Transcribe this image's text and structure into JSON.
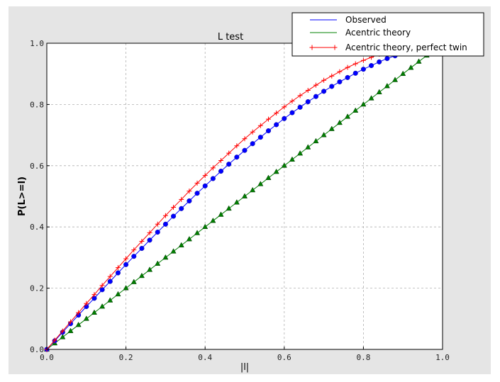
{
  "chart_data": {
    "type": "line",
    "title": "L test",
    "xlabel": "|l|",
    "ylabel": "P(L>=l)",
    "xlim": [
      0,
      1
    ],
    "ylim": [
      0,
      1
    ],
    "grid": true,
    "legend_placement": "top-right",
    "xticks": [
      "0.0",
      "0.2",
      "0.4",
      "0.6",
      "0.8",
      "1.0"
    ],
    "yticks": [
      "0.0",
      "0.2",
      "0.4",
      "0.6",
      "0.8",
      "1.0"
    ],
    "x": [
      0,
      0.02,
      0.04,
      0.06,
      0.08,
      0.1,
      0.12,
      0.14,
      0.16,
      0.18,
      0.2,
      0.22,
      0.24,
      0.26,
      0.28,
      0.3,
      0.32,
      0.34,
      0.36,
      0.38,
      0.4,
      0.42,
      0.44,
      0.46,
      0.48,
      0.5,
      0.52,
      0.54,
      0.56,
      0.58,
      0.6,
      0.62,
      0.64,
      0.66,
      0.68,
      0.7,
      0.72,
      0.74,
      0.76,
      0.78,
      0.8,
      0.82,
      0.84,
      0.86,
      0.88,
      0.9,
      0.92,
      0.94,
      0.96,
      0.98,
      1.0
    ],
    "series": [
      {
        "name": "Observed",
        "color": "#0000ff",
        "marker": "circle",
        "values": [
          0,
          0.028,
          0.056,
          0.084,
          0.112,
          0.14,
          0.167,
          0.195,
          0.222,
          0.25,
          0.277,
          0.304,
          0.33,
          0.357,
          0.383,
          0.409,
          0.435,
          0.46,
          0.485,
          0.51,
          0.534,
          0.558,
          0.582,
          0.605,
          0.628,
          0.65,
          0.672,
          0.693,
          0.714,
          0.734,
          0.754,
          0.773,
          0.791,
          0.809,
          0.826,
          0.843,
          0.859,
          0.874,
          0.888,
          0.902,
          0.915,
          0.927,
          0.939,
          0.95,
          0.959,
          0.968,
          0.977,
          0.984,
          0.99,
          0.996,
          1.0
        ]
      },
      {
        "name": "Acentric theory",
        "color": "#008000",
        "marker": "triangle",
        "values": [
          0,
          0.02,
          0.04,
          0.06,
          0.08,
          0.1,
          0.12,
          0.14,
          0.16,
          0.18,
          0.2,
          0.22,
          0.24,
          0.26,
          0.28,
          0.3,
          0.32,
          0.34,
          0.36,
          0.38,
          0.4,
          0.42,
          0.44,
          0.46,
          0.48,
          0.5,
          0.52,
          0.54,
          0.56,
          0.58,
          0.6,
          0.62,
          0.64,
          0.66,
          0.68,
          0.7,
          0.72,
          0.74,
          0.76,
          0.78,
          0.8,
          0.82,
          0.84,
          0.86,
          0.88,
          0.9,
          0.92,
          0.94,
          0.96,
          0.98,
          1.0
        ]
      },
      {
        "name": "Acentric theory, perfect twin",
        "color": "#ff0000",
        "marker": "plus",
        "values": [
          0,
          0.03,
          0.06,
          0.09,
          0.12,
          0.15,
          0.179,
          0.209,
          0.238,
          0.267,
          0.296,
          0.325,
          0.353,
          0.381,
          0.409,
          0.437,
          0.464,
          0.49,
          0.517,
          0.543,
          0.568,
          0.593,
          0.617,
          0.641,
          0.665,
          0.688,
          0.71,
          0.731,
          0.752,
          0.772,
          0.792,
          0.811,
          0.829,
          0.846,
          0.863,
          0.879,
          0.893,
          0.907,
          0.921,
          0.933,
          0.944,
          0.954,
          0.964,
          0.972,
          0.979,
          0.986,
          0.991,
          0.995,
          0.998,
          0.999,
          1.0
        ]
      }
    ]
  }
}
